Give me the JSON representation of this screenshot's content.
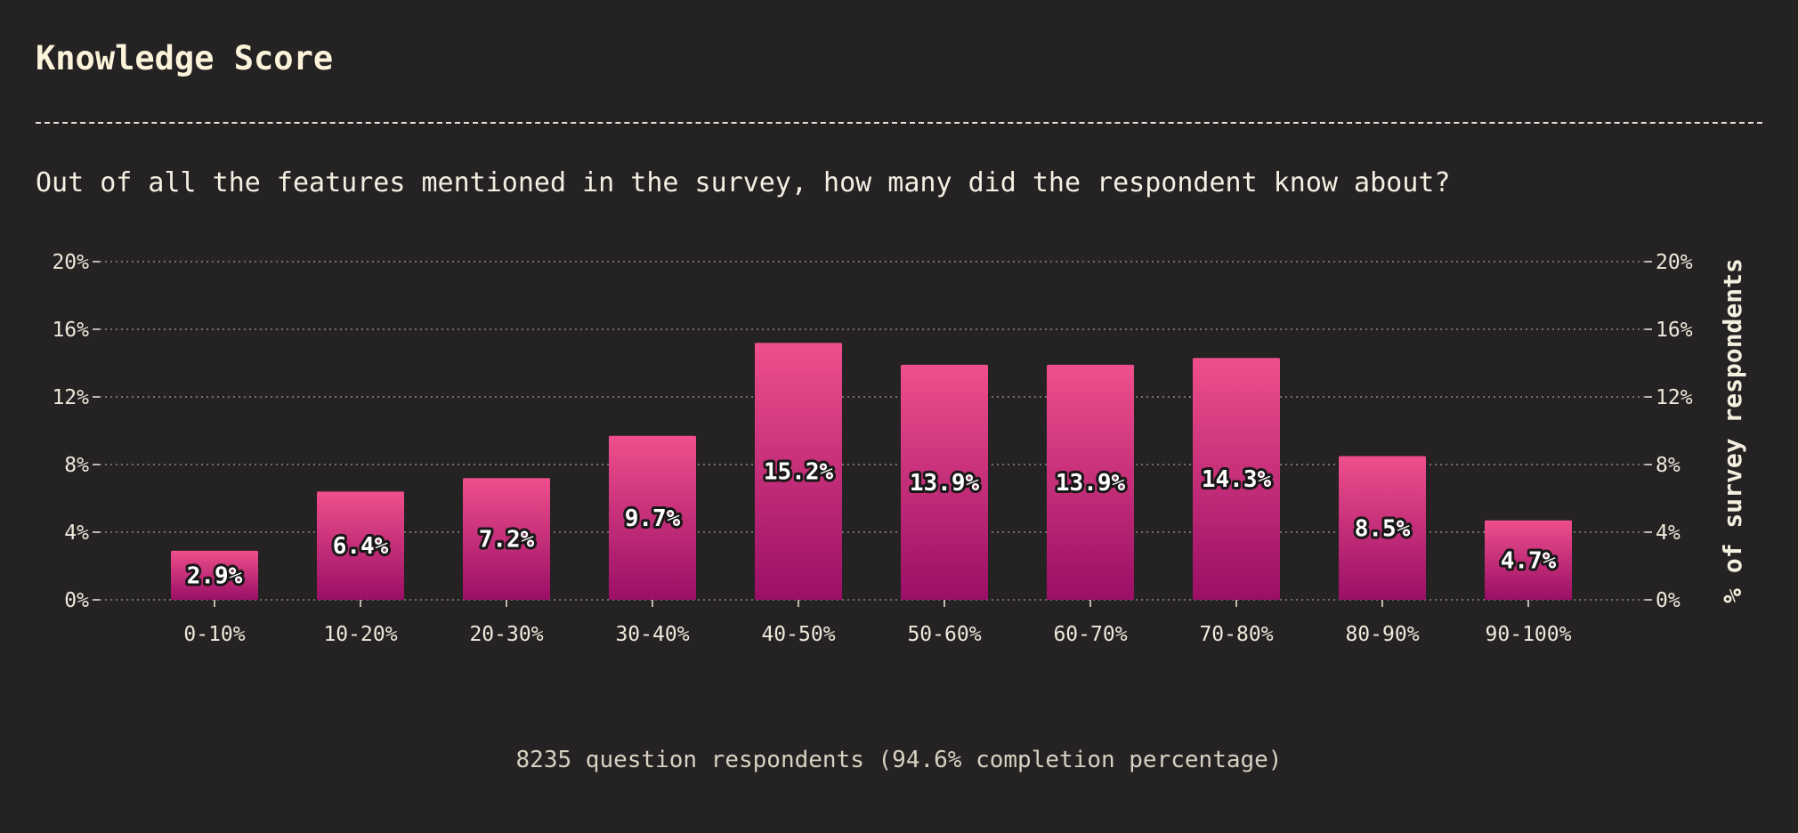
{
  "title": "Knowledge Score",
  "subtitle": "Out of all the features mentioned in the survey, how many did the respondent know about?",
  "footer": "8235 question respondents (94.6% completion percentage)",
  "colors": {
    "background": "#252223",
    "bar_top": "#ef4f8c",
    "bar_bottom": "#9a0f66",
    "grid": "#8d8784",
    "text": "#efe9db"
  },
  "chart_data": {
    "type": "bar",
    "categories": [
      "0-10%",
      "10-20%",
      "20-30%",
      "30-40%",
      "40-50%",
      "50-60%",
      "60-70%",
      "70-80%",
      "80-90%",
      "90-100%"
    ],
    "values": [
      2.9,
      6.4,
      7.2,
      9.7,
      15.2,
      13.9,
      13.9,
      14.3,
      8.5,
      4.7
    ],
    "value_labels": [
      "2.9%",
      "6.4%",
      "7.2%",
      "9.7%",
      "15.2%",
      "13.9%",
      "13.9%",
      "14.3%",
      "8.5%",
      "4.7%"
    ],
    "ylim": [
      0,
      20
    ],
    "yticks": [
      0,
      4,
      8,
      12,
      16,
      20
    ],
    "ytick_labels": [
      "0%",
      "4%",
      "8%",
      "12%",
      "16%",
      "20%"
    ],
    "ylabel_right": "% of survey respondents",
    "grid": true,
    "grid_style": "dotted",
    "y_axis_both_sides": true
  }
}
